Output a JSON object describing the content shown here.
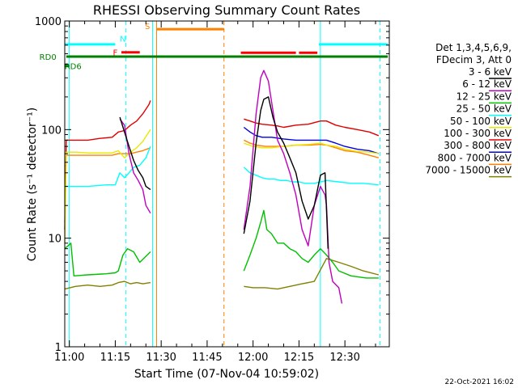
{
  "chart_data": {
    "type": "line",
    "title": "RHESSI Observing Summary Count Rates",
    "xlabel": "Start Time (07-Nov-04 10:59:02)",
    "ylabel": "Count Rate (s⁻¹ detector⁻¹)",
    "yscale": "log",
    "ylim": [
      1,
      1000
    ],
    "xlim_minutes_from_11_00": [
      -1.5,
      104.5
    ],
    "x_ticks": [
      {
        "t": 0,
        "label": "11:00"
      },
      {
        "t": 15,
        "label": "11:15"
      },
      {
        "t": 30,
        "label": "11:30"
      },
      {
        "t": 45,
        "label": "11:45"
      },
      {
        "t": 60,
        "label": "12:00"
      },
      {
        "t": 75,
        "label": "12:15"
      },
      {
        "t": 90,
        "label": "12:30"
      }
    ],
    "y_ticks": [
      {
        "v": 1,
        "label": "1"
      },
      {
        "v": 10,
        "label": "10"
      },
      {
        "v": 100,
        "label": "100"
      },
      {
        "v": 1000,
        "label": "1000"
      }
    ],
    "grid": false,
    "legend_position": "right",
    "legend_header": [
      "Det 1,3,4,5,6,9,",
      "FDecim 3, Att 0"
    ],
    "footer_date": "22-Oct-2021 16:02",
    "series": [
      {
        "name": "3 - 6 keV",
        "color": "#000000",
        "segments": [
          [
            [
              16.5,
              130
            ],
            [
              18,
              95
            ],
            [
              19.5,
              70
            ],
            [
              21,
              52
            ],
            [
              22.5,
              42
            ],
            [
              24,
              36
            ],
            [
              25,
              30
            ],
            [
              26.5,
              28
            ]
          ],
          [
            [
              57,
              11
            ],
            [
              59,
              22
            ],
            [
              61,
              75
            ],
            [
              62.5,
              150
            ],
            [
              63.5,
              190
            ],
            [
              65,
              200
            ],
            [
              66.5,
              130
            ],
            [
              68,
              95
            ],
            [
              70,
              75
            ],
            [
              72,
              55
            ],
            [
              74,
              40
            ],
            [
              76,
              22
            ],
            [
              78,
              15
            ],
            [
              80,
              20
            ],
            [
              82,
              38
            ],
            [
              83.5,
              40
            ],
            [
              84.5,
              8
            ]
          ]
        ]
      },
      {
        "name": "6 - 12 keV",
        "color": "#c000c0",
        "segments": [
          [
            [
              16.5,
              125
            ],
            [
              18,
              110
            ],
            [
              19.5,
              60
            ],
            [
              21,
              40
            ],
            [
              22.5,
              34
            ],
            [
              24,
              28
            ],
            [
              25,
              20
            ],
            [
              26.5,
              17
            ]
          ],
          [
            [
              57,
              12
            ],
            [
              59,
              30
            ],
            [
              61,
              140
            ],
            [
              62.5,
              300
            ],
            [
              63.5,
              350
            ],
            [
              65,
              280
            ],
            [
              66.5,
              150
            ],
            [
              68,
              80
            ],
            [
              70,
              60
            ],
            [
              72,
              40
            ],
            [
              74,
              25
            ],
            [
              76,
              12
            ],
            [
              78,
              8.5
            ],
            [
              80,
              20
            ],
            [
              82,
              30
            ],
            [
              83.5,
              25
            ],
            [
              84,
              20
            ],
            [
              84.8,
              6
            ],
            [
              86,
              4
            ],
            [
              88,
              3.5
            ],
            [
              89,
              2.5
            ]
          ]
        ]
      },
      {
        "name": "12 - 25 keV",
        "color": "#00c000",
        "segments": [
          [
            [
              -1.5,
              8
            ],
            [
              0.5,
              9
            ],
            [
              1.5,
              4.5
            ],
            [
              6,
              4.6
            ],
            [
              12,
              4.7
            ],
            [
              15,
              4.8
            ],
            [
              16,
              5
            ],
            [
              17.5,
              7
            ],
            [
              19,
              8
            ],
            [
              21,
              7.5
            ],
            [
              23,
              6
            ],
            [
              26.5,
              7.5
            ]
          ],
          [
            [
              57,
              5
            ],
            [
              59,
              7
            ],
            [
              61,
              10
            ],
            [
              62.5,
              14
            ],
            [
              63.5,
              18
            ],
            [
              64.5,
              12
            ],
            [
              66,
              11
            ],
            [
              68,
              9
            ],
            [
              70,
              9
            ],
            [
              72,
              8
            ],
            [
              74,
              7.5
            ],
            [
              76,
              6.5
            ],
            [
              78,
              6
            ],
            [
              80,
              7
            ],
            [
              82,
              8
            ],
            [
              84,
              7
            ],
            [
              86,
              6
            ],
            [
              88,
              5
            ],
            [
              92,
              4.5
            ],
            [
              97,
              4.3
            ],
            [
              101,
              4.3
            ]
          ]
        ]
      },
      {
        "name": "25 - 50 keV",
        "color": "#00ffff",
        "segments": [
          [
            [
              -1.5,
              30
            ],
            [
              1,
              30
            ],
            [
              6,
              30
            ],
            [
              12,
              31
            ],
            [
              15,
              31
            ],
            [
              16.5,
              40
            ],
            [
              18,
              36
            ],
            [
              19.5,
              40
            ],
            [
              21,
              45
            ],
            [
              23,
              47
            ],
            [
              25,
              55
            ],
            [
              26.5,
              70
            ]
          ],
          [
            [
              57,
              45
            ],
            [
              59,
              40
            ],
            [
              61,
              38
            ],
            [
              63,
              36
            ],
            [
              65,
              35
            ],
            [
              67,
              35
            ],
            [
              69,
              34
            ],
            [
              71,
              34
            ],
            [
              73,
              33
            ],
            [
              75,
              33
            ],
            [
              77,
              32
            ],
            [
              80,
              32
            ],
            [
              84,
              34
            ],
            [
              88,
              33
            ],
            [
              92,
              32
            ],
            [
              96,
              32
            ],
            [
              101,
              31
            ]
          ]
        ]
      },
      {
        "name": "50 - 100 keV",
        "color": "#e8e800",
        "segments": [
          [
            [
              -1.5,
              9
            ],
            [
              -1,
              62
            ],
            [
              2,
              62
            ],
            [
              6,
              61
            ],
            [
              10,
              61
            ],
            [
              14,
              61
            ],
            [
              16,
              64
            ],
            [
              18,
              55
            ],
            [
              20,
              62
            ],
            [
              22,
              68
            ],
            [
              24,
              78
            ],
            [
              26.5,
              100
            ]
          ],
          [
            [
              57,
              75
            ],
            [
              60,
              70
            ],
            [
              63,
              68
            ],
            [
              66,
              68
            ],
            [
              70,
              70
            ],
            [
              74,
              72
            ],
            [
              78,
              73
            ],
            [
              82,
              75
            ],
            [
              84,
              72
            ],
            [
              87,
              70
            ],
            [
              90,
              66
            ],
            [
              94,
              63
            ],
            [
              98,
              62
            ],
            [
              101,
              60
            ]
          ]
        ]
      },
      {
        "name": "100 - 300 keV",
        "color": "#e00000",
        "segments": [
          [
            [
              -1.5,
              12
            ],
            [
              -1,
              80
            ],
            [
              2,
              80
            ],
            [
              6,
              80
            ],
            [
              10,
              83
            ],
            [
              14,
              85
            ],
            [
              16,
              95
            ],
            [
              18,
              98
            ],
            [
              20,
              110
            ],
            [
              22,
              120
            ],
            [
              24,
              140
            ],
            [
              26,
              170
            ],
            [
              26.5,
              185
            ]
          ],
          [
            [
              57,
              125
            ],
            [
              59,
              120
            ],
            [
              61,
              115
            ],
            [
              63,
              112
            ],
            [
              66,
              110
            ],
            [
              68,
              108
            ],
            [
              70,
              105
            ],
            [
              74,
              110
            ],
            [
              78,
              112
            ],
            [
              82,
              120
            ],
            [
              84,
              120
            ],
            [
              87,
              110
            ],
            [
              90,
              105
            ],
            [
              94,
              100
            ],
            [
              98,
              95
            ],
            [
              101,
              88
            ]
          ]
        ]
      },
      {
        "name": "300 - 800 keV",
        "color": "#0000e0",
        "segments": [
          [
            [
              -1.5,
              46
            ],
            [
              -1,
              47
            ]
          ],
          [
            [
              57,
              105
            ],
            [
              59,
              95
            ],
            [
              61,
              88
            ],
            [
              63,
              85
            ],
            [
              66,
              85
            ],
            [
              70,
              82
            ],
            [
              74,
              80
            ],
            [
              78,
              80
            ],
            [
              82,
              80
            ],
            [
              84,
              80
            ],
            [
              87,
              75
            ],
            [
              90,
              70
            ],
            [
              94,
              66
            ],
            [
              98,
              64
            ],
            [
              101,
              60
            ]
          ]
        ]
      },
      {
        "name": "800 - 7000 keV",
        "color": "#ff8000",
        "segments": [
          [
            [
              -1.5,
              14
            ],
            [
              -1,
              58
            ],
            [
              2,
              58
            ],
            [
              6,
              58
            ],
            [
              10,
              58
            ],
            [
              14,
              58
            ],
            [
              16,
              60
            ],
            [
              18,
              60
            ],
            [
              20,
              60
            ],
            [
              22,
              62
            ],
            [
              24,
              64
            ],
            [
              26.5,
              68
            ]
          ],
          [
            [
              57,
              80
            ],
            [
              59,
              75
            ],
            [
              61,
              72
            ],
            [
              64,
              70
            ],
            [
              67,
              70
            ],
            [
              70,
              70
            ],
            [
              74,
              72
            ],
            [
              78,
              72
            ],
            [
              82,
              73
            ],
            [
              84,
              72
            ],
            [
              87,
              68
            ],
            [
              90,
              64
            ],
            [
              94,
              62
            ],
            [
              98,
              58
            ],
            [
              101,
              55
            ]
          ]
        ]
      },
      {
        "name": "7000 - 15000 keV",
        "color": "#808000",
        "segments": [
          [
            [
              -1.5,
              3.4
            ],
            [
              2,
              3.6
            ],
            [
              6,
              3.7
            ],
            [
              10,
              3.6
            ],
            [
              14,
              3.7
            ],
            [
              16,
              3.9
            ],
            [
              18,
              4.0
            ],
            [
              20,
              3.8
            ],
            [
              22,
              3.9
            ],
            [
              24,
              3.8
            ],
            [
              26.5,
              3.9
            ]
          ],
          [
            [
              57,
              3.6
            ],
            [
              60,
              3.5
            ],
            [
              64,
              3.5
            ],
            [
              68,
              3.4
            ],
            [
              72,
              3.6
            ],
            [
              76,
              3.8
            ],
            [
              80,
              4.0
            ],
            [
              84,
              6.5
            ],
            [
              88,
              6.0
            ],
            [
              92,
              5.5
            ],
            [
              96,
              5.0
            ],
            [
              101,
              4.6
            ]
          ]
        ]
      }
    ],
    "flags": [
      {
        "label": "N",
        "color": "#00ffff",
        "t_start": -1.5,
        "t_end": 15,
        "level": 610,
        "label_t": 17.5,
        "label_level": 690
      },
      {
        "label": "N",
        "color": "#00ffff",
        "t_start": 81.5,
        "t_end": 104,
        "level": 610
      },
      {
        "label": "F",
        "color": "#ff0000",
        "t_start": 17,
        "t_end": 23,
        "level": 515,
        "label_t": 15,
        "label_level": 515
      },
      {
        "label": "S",
        "color": "#ff8000",
        "t_start": 28.5,
        "t_end": 50.5,
        "level": 840,
        "label_t": 25.5,
        "label_level": 900
      },
      {
        "label": "",
        "color": "#ff0000",
        "t_start": 56,
        "t_end": 74,
        "level": 510
      },
      {
        "label": "",
        "color": "#ff0000",
        "t_start": 75,
        "t_end": 81,
        "level": 510
      },
      {
        "label": "RD0",
        "color": "#008000",
        "t_start": -1,
        "t_end": 104,
        "level": 470,
        "label_t": -7,
        "label_level": 470
      },
      {
        "label": "RD6",
        "color": "#008000",
        "t_start": -1.4,
        "t_end": 0,
        "level": 385,
        "label_t": 1.2,
        "label_level": 385
      }
    ],
    "vlines": [
      {
        "t": 0,
        "color": "#00ffff",
        "dashed": false
      },
      {
        "t": 18.5,
        "color": "#00ffff",
        "dashed": true
      },
      {
        "t": 27.2,
        "color": "#00ffff",
        "dashed": false
      },
      {
        "t": 28.5,
        "color": "#ff8000",
        "dashed": false
      },
      {
        "t": 50.5,
        "color": "#ff8000",
        "dashed": true
      },
      {
        "t": 82,
        "color": "#00ffff",
        "dashed": false
      },
      {
        "t": 101.5,
        "color": "#00ffff",
        "dashed": true
      }
    ]
  }
}
